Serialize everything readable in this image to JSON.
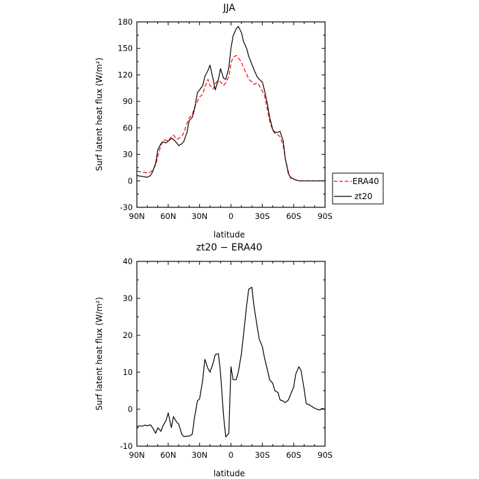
{
  "chart_data": [
    {
      "type": "line",
      "title": "JJA",
      "xlabel": "latitude",
      "ylabel": "Surf latent heat flux (W/m²)",
      "ylim": [
        -30,
        180
      ],
      "yticks": [
        -30,
        0,
        30,
        60,
        90,
        120,
        150,
        180
      ],
      "xlim": [
        90,
        -90
      ],
      "xticks": [
        {
          "value": 90,
          "label": "90N"
        },
        {
          "value": 60,
          "label": "60N"
        },
        {
          "value": 30,
          "label": "30N"
        },
        {
          "value": 0,
          "label": "0"
        },
        {
          "value": -30,
          "label": "30S"
        },
        {
          "value": -60,
          "label": "60S"
        },
        {
          "value": -90,
          "label": "90S"
        }
      ],
      "legend_position": "right-outside",
      "series": [
        {
          "name": "ERA40",
          "color": "#ff0000",
          "style": "dashed",
          "x": [
            90,
            85,
            80,
            77,
            75,
            72,
            70,
            67,
            65,
            62,
            60,
            57,
            55,
            52,
            50,
            47,
            45,
            42,
            40,
            37,
            35,
            32,
            30,
            27,
            25,
            22,
            20,
            17,
            15,
            12,
            10,
            7,
            5,
            2,
            0,
            -2,
            -5,
            -7,
            -10,
            -12,
            -15,
            -17,
            -20,
            -22,
            -25,
            -27,
            -30,
            -32,
            -35,
            -37,
            -40,
            -42,
            -45,
            -47,
            -50,
            -52,
            -55,
            -57,
            -60,
            -62,
            -65,
            -67,
            -70,
            -72,
            -75,
            -77,
            -80,
            -82,
            -85,
            -87,
            -90
          ],
          "y": [
            11,
            10,
            9,
            10,
            12,
            18,
            28,
            40,
            46,
            46,
            45,
            50,
            52,
            47,
            48,
            50,
            55,
            65,
            71,
            75,
            83,
            90,
            95,
            98,
            106,
            115,
            108,
            104,
            110,
            114,
            112,
            108,
            111,
            118,
            133,
            140,
            142,
            139,
            135,
            128,
            121,
            115,
            112,
            109,
            111,
            108,
            102,
            97,
            80,
            68,
            57,
            54,
            52,
            50,
            40,
            25,
            10,
            3,
            2,
            1,
            0,
            0,
            0,
            0,
            0,
            0,
            0,
            0,
            0,
            0,
            0
          ]
        },
        {
          "name": "zt20",
          "color": "#000000",
          "style": "solid",
          "x": [
            90,
            85,
            80,
            77,
            75,
            72,
            70,
            67,
            65,
            62,
            60,
            57,
            55,
            52,
            50,
            47,
            45,
            42,
            40,
            37,
            35,
            32,
            30,
            27,
            25,
            22,
            20,
            17,
            15,
            12,
            10,
            7,
            5,
            2,
            0,
            -2,
            -5,
            -7,
            -10,
            -12,
            -15,
            -17,
            -20,
            -22,
            -25,
            -27,
            -30,
            -32,
            -35,
            -37,
            -40,
            -42,
            -45,
            -47,
            -50,
            -52,
            -55,
            -57,
            -60,
            -62,
            -65,
            -67,
            -70,
            -72,
            -75,
            -77,
            -80,
            -82,
            -85,
            -87,
            -90
          ],
          "y": [
            6,
            5,
            4,
            6,
            10,
            20,
            35,
            42,
            44,
            43,
            45,
            48,
            47,
            43,
            40,
            42,
            45,
            55,
            68,
            72,
            80,
            100,
            103,
            108,
            118,
            125,
            131,
            115,
            103,
            115,
            127,
            116,
            115,
            128,
            150,
            164,
            172,
            175,
            168,
            158,
            150,
            141,
            132,
            126,
            118,
            115,
            112,
            103,
            86,
            72,
            58,
            55,
            55,
            56,
            45,
            25,
            8,
            4,
            2,
            1,
            0,
            0,
            0,
            0,
            0,
            0,
            0,
            0,
            0,
            0,
            0
          ]
        }
      ]
    },
    {
      "type": "line",
      "title": "zt20 − ERA40",
      "xlabel": "latitude",
      "ylabel": "Surf latent heat flux (W/m²)",
      "ylim": [
        -10,
        40
      ],
      "yticks": [
        -10,
        0,
        10,
        20,
        30,
        40
      ],
      "xlim": [
        90,
        -90
      ],
      "xticks": [
        {
          "value": 90,
          "label": "90N"
        },
        {
          "value": 60,
          "label": "60N"
        },
        {
          "value": 30,
          "label": "30N"
        },
        {
          "value": 0,
          "label": "0"
        },
        {
          "value": -30,
          "label": "30S"
        },
        {
          "value": -60,
          "label": "60S"
        },
        {
          "value": -90,
          "label": "90S"
        }
      ],
      "series": [
        {
          "color": "#000000",
          "style": "solid",
          "x": [
            90,
            88,
            85,
            82,
            80,
            77,
            75,
            72,
            70,
            67,
            65,
            62,
            60,
            57,
            55,
            52,
            50,
            47,
            45,
            42,
            40,
            37,
            35,
            32,
            30,
            27,
            25,
            22,
            20,
            17,
            15,
            12,
            10,
            7,
            5,
            2,
            0,
            -2,
            -5,
            -7,
            -10,
            -12,
            -15,
            -17,
            -20,
            -22,
            -25,
            -27,
            -30,
            -32,
            -35,
            -37,
            -40,
            -42,
            -45,
            -47,
            -50,
            -52,
            -55,
            -57,
            -60,
            -62,
            -65,
            -67,
            -70,
            -72,
            -75,
            -77,
            -80,
            -82,
            -85,
            -87,
            -90
          ],
          "y": [
            -4.8,
            -4.5,
            -4.6,
            -4.3,
            -4.5,
            -4.2,
            -5,
            -6.5,
            -5,
            -6,
            -4.5,
            -3,
            -1,
            -5,
            -2,
            -3.5,
            -4,
            -6.8,
            -7.4,
            -7.3,
            -7.3,
            -6.8,
            -2.5,
            2.3,
            2.8,
            8,
            13.5,
            11,
            10,
            12.5,
            14.8,
            15,
            10,
            -2,
            -7.5,
            -6.5,
            11.5,
            8,
            8,
            10,
            15,
            20,
            28,
            32.5,
            33,
            28,
            22.5,
            19,
            17,
            14,
            10.5,
            8,
            7,
            5,
            4.5,
            2.5,
            2.2,
            1.8,
            2.5,
            4,
            6,
            9.5,
            11.5,
            10.5,
            5.5,
            1.5,
            1.2,
            0.8,
            0.3,
            0,
            -0.2,
            0.2,
            0
          ]
        }
      ]
    }
  ],
  "legend": {
    "era40_label": "ERA40",
    "zt20_label": "zt20"
  }
}
